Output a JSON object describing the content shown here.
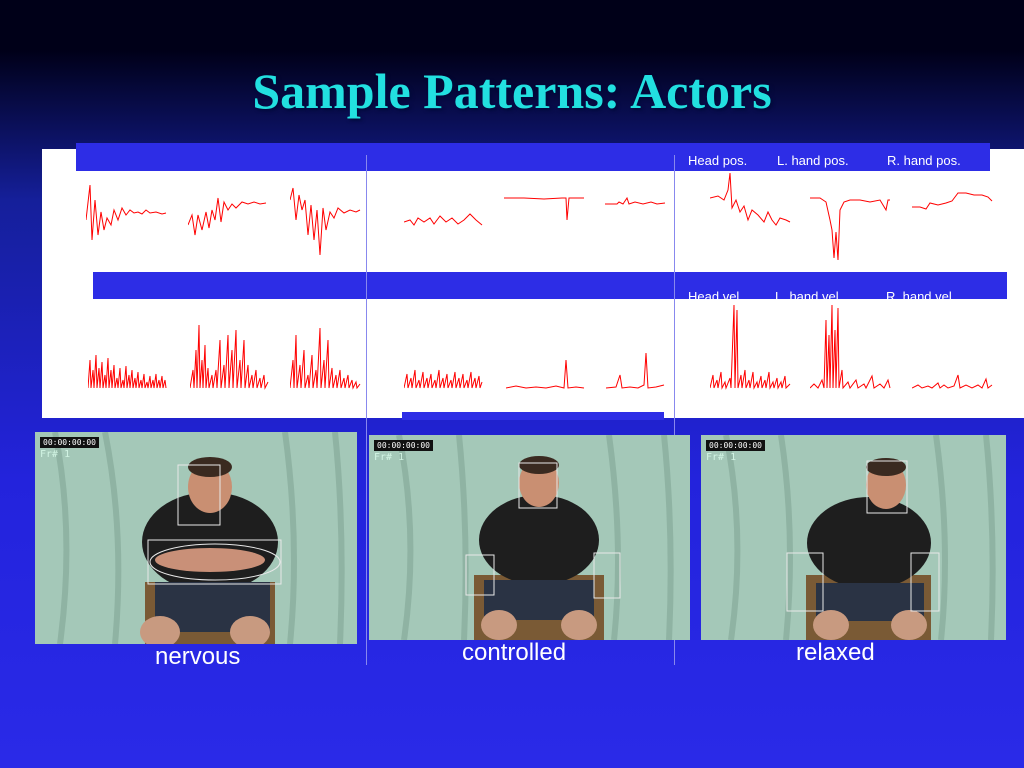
{
  "slide": {
    "title": "Sample Patterns: Actors"
  },
  "charts": {
    "position_headers": [
      "Head pos.",
      "L. hand pos.",
      "R. hand pos."
    ],
    "velocity_headers": [
      "Head vel.",
      "L. hand vel.",
      "R. hand vel."
    ]
  },
  "videos": [
    {
      "timecode": "00:00:00:00",
      "frame": "Fr# 1",
      "label": "nervous"
    },
    {
      "timecode": "00:00:00:00",
      "frame": "Fr# 1",
      "label": "controlled"
    },
    {
      "timecode": "00:00:00:00",
      "frame": "Fr# 1",
      "label": "relaxed"
    }
  ],
  "colors": {
    "title": "#22e0e0",
    "trace": "#ff0000",
    "slide_blue": "#2d2de6"
  }
}
